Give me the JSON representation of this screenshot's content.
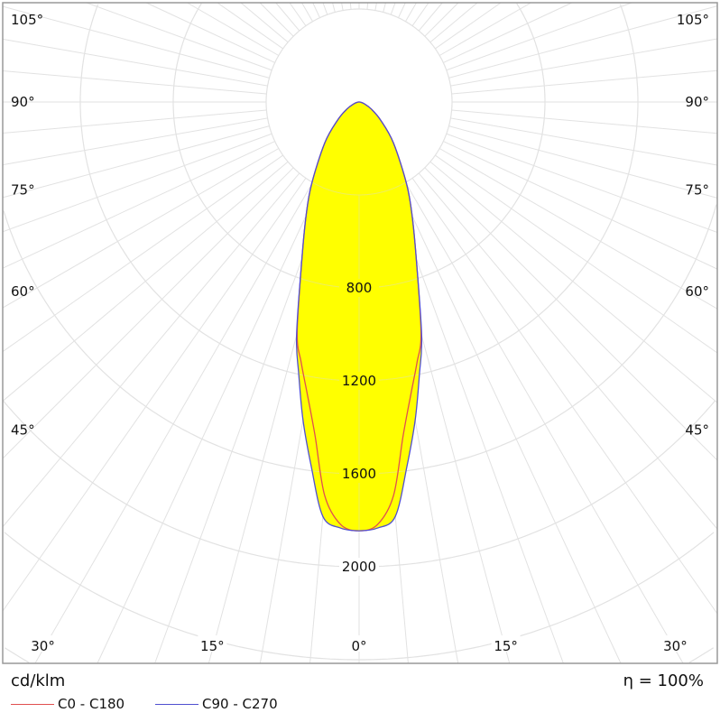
{
  "chart_data": {
    "type": "polar",
    "unit_label": "cd/klm",
    "efficiency_label": "η = 100%",
    "radial_ticks": [
      400,
      800,
      1200,
      1600,
      2000,
      2400,
      2800,
      3200
    ],
    "radial_tick_labels": [
      "800",
      "1200",
      "1600",
      "2000"
    ],
    "radial_tick_label_values": [
      800,
      1200,
      1600,
      2000
    ],
    "angle_labels_side": [
      "105°",
      "90°",
      "75°",
      "60°",
      "45°"
    ],
    "angle_labels_side_values": [
      105,
      90,
      75,
      60,
      45
    ],
    "angle_labels_bottom": [
      "30°",
      "15°",
      "0°",
      "15°",
      "30°"
    ],
    "angle_labels_bottom_values": [
      -30,
      -15,
      0,
      15,
      30
    ],
    "grid": true,
    "fill_color": "#ffff00",
    "angles": [
      0,
      2.5,
      5,
      7.5,
      10,
      12.5,
      15,
      20,
      25,
      30,
      40,
      50,
      60,
      70,
      80,
      90
    ],
    "series": [
      {
        "name": "C0 - C180",
        "color": "#e05050",
        "values": [
          1845,
          1820,
          1700,
          1450,
          1280,
          1150,
          1030,
          720,
          540,
          410,
          230,
          120,
          60,
          25,
          8,
          0
        ]
      },
      {
        "name": "C90 - C270",
        "color": "#5050d0",
        "values": [
          1845,
          1835,
          1790,
          1580,
          1390,
          1200,
          1040,
          720,
          540,
          410,
          230,
          120,
          60,
          25,
          8,
          0
        ]
      }
    ]
  }
}
